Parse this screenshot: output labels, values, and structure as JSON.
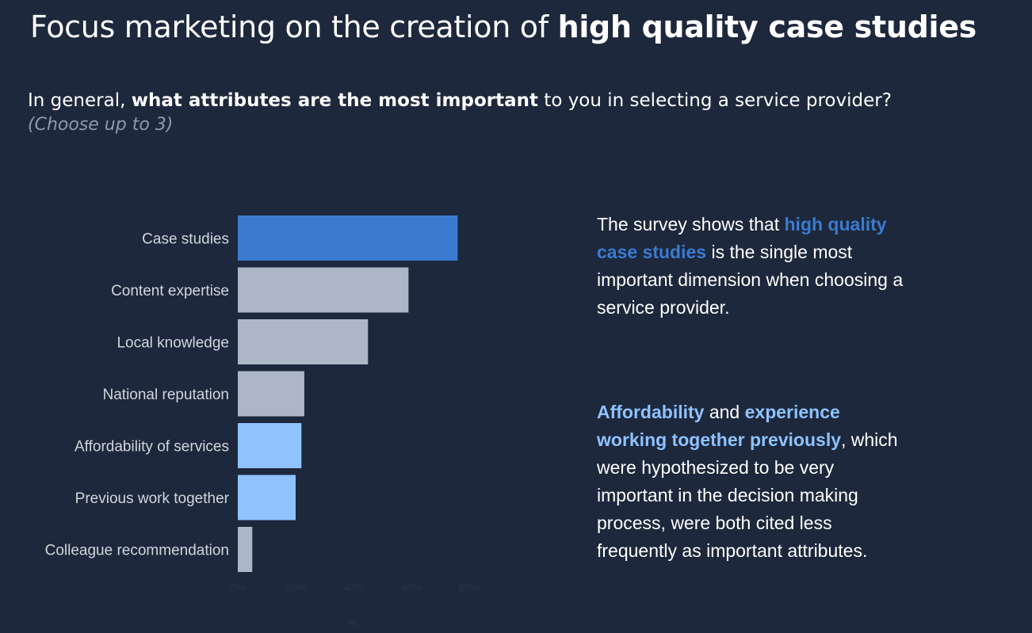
{
  "header": {
    "title_regular": "Focus marketing on the creation of ",
    "title_bold": "high quality case studies"
  },
  "question": {
    "prefix": "In general, ",
    "bold": "what attributes are the most important",
    "suffix": " to you in selecting a service provider?",
    "hint": "(Choose up to 3)"
  },
  "narrative": {
    "p1_prefix": "The survey shows that ",
    "p1_highlight": "high quality case studies",
    "p1_suffix": " is the single most important dimension when choosing a service provider.",
    "p2_highlight1": "Affordability",
    "p2_mid": " and ",
    "p2_highlight2": "experience working together previously",
    "p2_suffix": ", which were hypothesized to be very important in the decision making process, were both cited less frequently as important attributes."
  },
  "colors": {
    "background": "#1d283c",
    "highlight_bar": "#3a7bd0",
    "neutral_bar": "#adb6c6",
    "light_bar": "#8fc2ff"
  },
  "chart_data": {
    "type": "bar",
    "orientation": "horizontal",
    "categories": [
      "Case studies",
      "Content expertise",
      "Local knowledge",
      "National reputation",
      "Affordability of services",
      "Previous work together",
      "Colleague recommendation"
    ],
    "values": [
      76,
      59,
      45,
      23,
      22,
      20,
      5
    ],
    "bar_colors": [
      "#3a7bd0",
      "#adb6c6",
      "#adb6c6",
      "#adb6c6",
      "#8fc2ff",
      "#8fc2ff",
      "#adb6c6"
    ],
    "xticks": [
      "0%",
      "20%",
      "40%",
      "60%",
      "80%"
    ],
    "xlabel": "%",
    "xlim": [
      0,
      80
    ],
    "grid": false
  }
}
